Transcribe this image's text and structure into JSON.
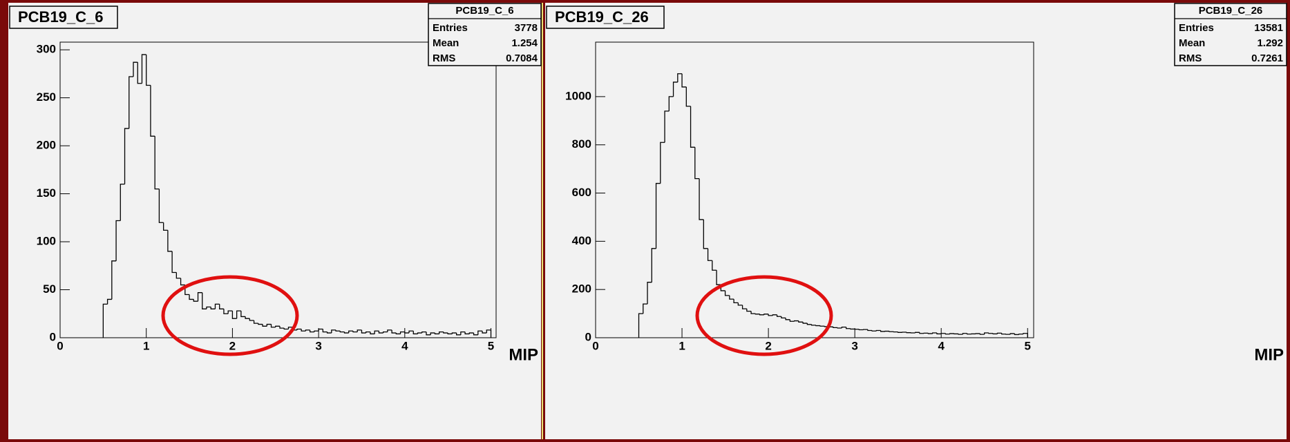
{
  "chart_data": [
    {
      "type": "histogram",
      "title": "PCB19_C_6",
      "x_label": "MIP",
      "color": "#000000",
      "bins": [
        0.5,
        0.55,
        0.6,
        0.65,
        0.7,
        0.75,
        0.8,
        0.85,
        0.9,
        0.95,
        1,
        1.05,
        1.1,
        1.15,
        1.2,
        1.25,
        1.3,
        1.35,
        1.4,
        1.45,
        1.5,
        1.55,
        1.6,
        1.65,
        1.7,
        1.75,
        1.8,
        1.85,
        1.9,
        1.95,
        2,
        2.05,
        2.1,
        2.15,
        2.2,
        2.25,
        2.3,
        2.35,
        2.4,
        2.45,
        2.5,
        2.55,
        2.6,
        2.65,
        2.7,
        2.75,
        2.8,
        2.85,
        2.9,
        2.95,
        3,
        3.05,
        3.1,
        3.15,
        3.2,
        3.25,
        3.3,
        3.35,
        3.4,
        3.45,
        3.5,
        3.55,
        3.6,
        3.65,
        3.7,
        3.75,
        3.8,
        3.85,
        3.9,
        3.95,
        4,
        4.05,
        4.1,
        4.15,
        4.2,
        4.25,
        4.3,
        4.35,
        4.4,
        4.45,
        4.5,
        4.55,
        4.6,
        4.65,
        4.7,
        4.75,
        4.8,
        4.85,
        4.9,
        4.95,
        5
      ],
      "values": [
        35,
        40,
        80,
        122,
        160,
        218,
        272,
        287,
        265,
        295,
        263,
        210,
        155,
        120,
        112,
        90,
        68,
        62,
        55,
        45,
        40,
        38,
        47,
        30,
        32,
        30,
        35,
        30,
        25,
        28,
        20,
        28,
        22,
        20,
        18,
        15,
        14,
        12,
        14,
        11,
        12,
        10,
        9,
        11,
        8,
        9,
        7,
        8,
        6,
        7,
        9,
        6,
        5,
        8,
        7,
        6,
        5,
        7,
        6,
        8,
        5,
        6,
        4,
        7,
        5,
        6,
        8,
        5,
        4,
        6,
        5,
        7,
        4,
        5,
        6,
        3,
        5,
        4,
        6,
        5,
        4,
        5,
        3,
        6,
        4,
        5,
        3,
        7,
        5,
        8
      ],
      "xlim": [
        0,
        5.06
      ],
      "xticks": [
        0,
        1,
        2,
        3,
        4,
        5
      ],
      "ylim": [
        0,
        308
      ],
      "yticks": [
        0,
        50,
        100,
        150,
        200,
        250,
        300
      ],
      "stats": {
        "title": "PCB19_C_6",
        "rows": [
          [
            "Entries",
            3778
          ],
          [
            "Mean",
            1.254
          ],
          [
            "RMS",
            0.7084
          ]
        ]
      }
    },
    {
      "type": "histogram",
      "title": "PCB19_C_26",
      "x_label": "MIP",
      "color": "#000000",
      "bins": [
        0.5,
        0.55,
        0.6,
        0.65,
        0.7,
        0.75,
        0.8,
        0.85,
        0.9,
        0.95,
        1,
        1.05,
        1.1,
        1.15,
        1.2,
        1.25,
        1.3,
        1.35,
        1.4,
        1.45,
        1.5,
        1.55,
        1.6,
        1.65,
        1.7,
        1.75,
        1.8,
        1.85,
        1.9,
        1.95,
        2,
        2.05,
        2.1,
        2.15,
        2.2,
        2.25,
        2.3,
        2.35,
        2.4,
        2.45,
        2.5,
        2.55,
        2.6,
        2.65,
        2.7,
        2.75,
        2.8,
        2.85,
        2.9,
        2.95,
        3,
        3.05,
        3.1,
        3.15,
        3.2,
        3.25,
        3.3,
        3.35,
        3.4,
        3.45,
        3.5,
        3.55,
        3.6,
        3.65,
        3.7,
        3.75,
        3.8,
        3.85,
        3.9,
        3.95,
        4,
        4.05,
        4.1,
        4.15,
        4.2,
        4.25,
        4.3,
        4.35,
        4.4,
        4.45,
        4.5,
        4.55,
        4.6,
        4.65,
        4.7,
        4.75,
        4.8,
        4.85,
        4.9,
        4.95,
        5
      ],
      "values": [
        100,
        140,
        230,
        370,
        640,
        810,
        940,
        1000,
        1060,
        1095,
        1040,
        960,
        790,
        660,
        490,
        370,
        320,
        280,
        220,
        195,
        175,
        160,
        145,
        135,
        120,
        110,
        100,
        98,
        95,
        98,
        92,
        95,
        88,
        82,
        75,
        68,
        70,
        65,
        60,
        55,
        52,
        50,
        48,
        46,
        45,
        42,
        40,
        44,
        38,
        36,
        35,
        33,
        34,
        30,
        28,
        30,
        26,
        27,
        25,
        24,
        22,
        23,
        21,
        20,
        22,
        18,
        19,
        17,
        20,
        16,
        18,
        15,
        17,
        16,
        14,
        18,
        15,
        16,
        17,
        14,
        20,
        18,
        16,
        19,
        15,
        14,
        17,
        13,
        15,
        18
      ],
      "xlim": [
        0,
        5.07
      ],
      "xticks": [
        0,
        1,
        2,
        3,
        4,
        5
      ],
      "ylim": [
        0,
        1226
      ],
      "yticks": [
        0,
        200,
        400,
        600,
        800,
        1000
      ],
      "stats": {
        "title": "PCB19_C_26",
        "rows": [
          [
            "Entries",
            13581
          ],
          [
            "Mean",
            1.292
          ],
          [
            "RMS",
            0.7261
          ]
        ]
      }
    }
  ]
}
